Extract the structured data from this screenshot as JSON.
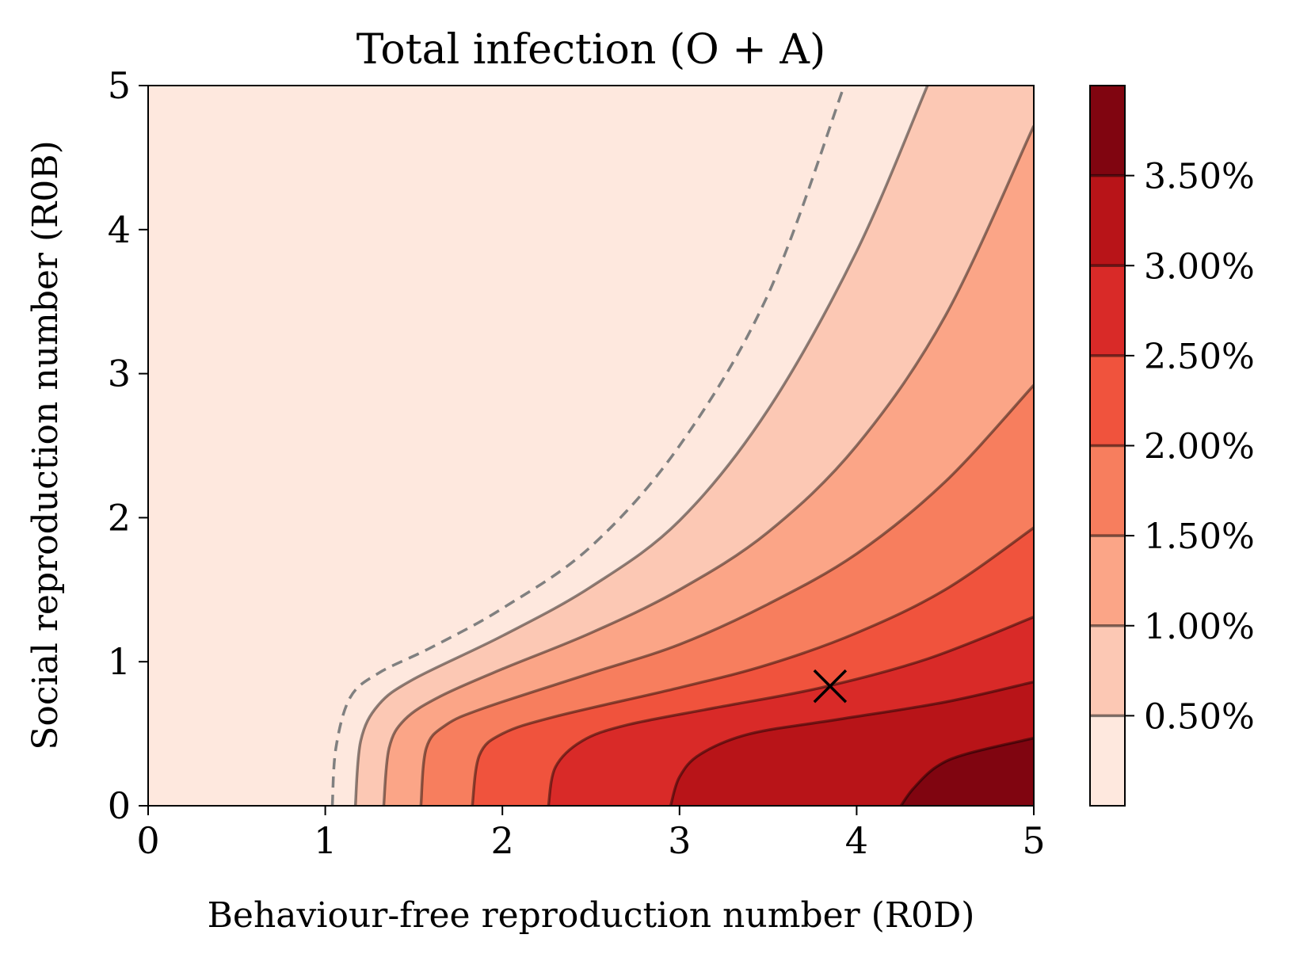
{
  "chart_data": {
    "type": "contour",
    "title": "Total infection (O + A)",
    "xlabel": "Behaviour-free reproduction number (R0D)",
    "ylabel": "Social reproduction number (R0B)",
    "xlim": [
      0,
      5
    ],
    "ylim": [
      0,
      5
    ],
    "x_ticks": [
      "0",
      "1",
      "2",
      "3",
      "4",
      "5"
    ],
    "y_ticks": [
      "0",
      "1",
      "2",
      "3",
      "4",
      "5"
    ],
    "colorbar": {
      "levels": [
        0.5,
        1.0,
        1.5,
        2.0,
        2.5,
        3.0,
        3.5
      ],
      "tick_labels": [
        "0.50%",
        "1.00%",
        "1.50%",
        "2.00%",
        "2.50%",
        "3.00%",
        "3.50%"
      ],
      "range": [
        0.0,
        4.0
      ],
      "unit": "%"
    },
    "band_colors": [
      "#fee8de",
      "#fcc8b4",
      "#fba587",
      "#f77e5e",
      "#f0533d",
      "#d92a28",
      "#b81418",
      "#800510"
    ],
    "threshold_curve": {
      "name": "epidemic threshold",
      "style": "dashed",
      "color": "#808080",
      "points": [
        [
          1.04,
          0
        ],
        [
          1.06,
          0.4
        ],
        [
          1.14,
          0.75
        ],
        [
          1.3,
          0.92
        ],
        [
          1.6,
          1.1
        ],
        [
          2.0,
          1.37
        ],
        [
          2.5,
          1.8
        ],
        [
          3.0,
          2.5
        ],
        [
          3.5,
          3.55
        ],
        [
          3.93,
          5.0
        ]
      ]
    },
    "contours": [
      {
        "level": 0.5,
        "label": "0.50%",
        "points": [
          [
            1.17,
            0
          ],
          [
            1.2,
            0.45
          ],
          [
            1.3,
            0.7
          ],
          [
            1.5,
            0.88
          ],
          [
            2.0,
            1.18
          ],
          [
            2.5,
            1.52
          ],
          [
            3.0,
            1.98
          ],
          [
            3.5,
            2.75
          ],
          [
            4.0,
            3.85
          ],
          [
            4.4,
            5.0
          ]
        ]
      },
      {
        "level": 1.0,
        "label": "1.00%",
        "points": [
          [
            1.33,
            0
          ],
          [
            1.36,
            0.4
          ],
          [
            1.45,
            0.6
          ],
          [
            1.65,
            0.76
          ],
          [
            2.0,
            0.95
          ],
          [
            2.5,
            1.2
          ],
          [
            3.0,
            1.5
          ],
          [
            3.5,
            1.9
          ],
          [
            4.0,
            2.5
          ],
          [
            4.5,
            3.4
          ],
          [
            5.0,
            4.72
          ]
        ]
      },
      {
        "level": 1.5,
        "label": "1.50%",
        "points": [
          [
            1.54,
            0
          ],
          [
            1.57,
            0.4
          ],
          [
            1.68,
            0.56
          ],
          [
            1.9,
            0.68
          ],
          [
            2.5,
            0.92
          ],
          [
            3.0,
            1.12
          ],
          [
            3.5,
            1.4
          ],
          [
            4.0,
            1.75
          ],
          [
            4.5,
            2.25
          ],
          [
            5.0,
            2.92
          ]
        ]
      },
      {
        "level": 2.0,
        "label": "2.00%",
        "points": [
          [
            1.83,
            0
          ],
          [
            1.87,
            0.35
          ],
          [
            2.0,
            0.5
          ],
          [
            2.3,
            0.62
          ],
          [
            3.0,
            0.82
          ],
          [
            3.5,
            0.98
          ],
          [
            4.0,
            1.2
          ],
          [
            4.5,
            1.5
          ],
          [
            5.0,
            1.93
          ]
        ]
      },
      {
        "level": 2.5,
        "label": "2.50%",
        "points": [
          [
            2.26,
            0
          ],
          [
            2.3,
            0.27
          ],
          [
            2.45,
            0.45
          ],
          [
            2.7,
            0.56
          ],
          [
            3.2,
            0.68
          ],
          [
            3.8,
            0.82
          ],
          [
            4.4,
            1.02
          ],
          [
            5.0,
            1.31
          ]
        ]
      },
      {
        "level": 3.0,
        "label": "3.00%",
        "points": [
          [
            2.95,
            0
          ],
          [
            3.0,
            0.2
          ],
          [
            3.12,
            0.36
          ],
          [
            3.4,
            0.5
          ],
          [
            3.9,
            0.6
          ],
          [
            4.5,
            0.72
          ],
          [
            5.0,
            0.86
          ]
        ]
      },
      {
        "level": 3.5,
        "label": "3.50%",
        "points": [
          [
            4.25,
            0
          ],
          [
            4.32,
            0.12
          ],
          [
            4.45,
            0.27
          ],
          [
            4.62,
            0.36
          ],
          [
            5.0,
            0.47
          ]
        ]
      }
    ],
    "marker": {
      "label": "×",
      "x": 3.85,
      "y": 0.83
    }
  }
}
